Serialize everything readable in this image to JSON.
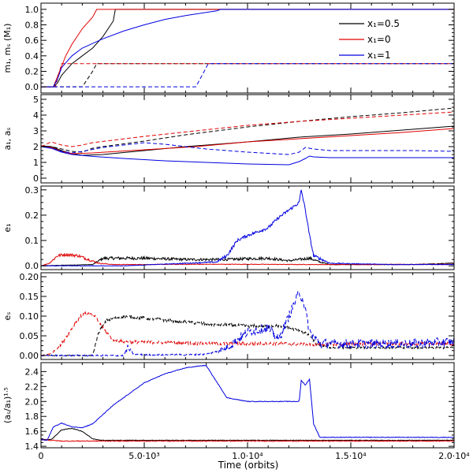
{
  "chart_data": {
    "type": "line",
    "xlabel": "Time (orbits)",
    "xlim": [
      0,
      20000
    ],
    "x_ticks": [
      0,
      5000,
      10000,
      15000,
      20000
    ],
    "x_tick_labels": [
      "0",
      "5.0·10³",
      "1.0·10⁴",
      "1.5·10⁴",
      "2.0·10⁴"
    ],
    "legend": {
      "placement": "top-right",
      "entries": [
        {
          "label": "x₁=0.5",
          "color": "#000000"
        },
        {
          "label": "x₁=0",
          "color": "#e00000"
        },
        {
          "label": "x₁=1",
          "color": "#0000e0"
        }
      ]
    },
    "colors": {
      "black": "#000000",
      "red": "#e00000",
      "blue": "#0000e0"
    },
    "panels": [
      {
        "id": "masses",
        "ylabel": "m₁, mₛ (M₁)",
        "ylim": [
          -0.08,
          1.08
        ],
        "y_ticks": [
          0.0,
          0.2,
          0.4,
          0.6,
          0.8,
          1.0
        ],
        "y_tick_labels": [
          "0.0",
          "0.2",
          "0.4",
          "0.6",
          "0.8",
          "1.0"
        ],
        "series": [
          {
            "name": "m_J x=0.5",
            "color": "black",
            "dash": false,
            "x": [
              0,
              600,
              800,
              1000,
              1500,
              2000,
              2500,
              3000,
              3500,
              3600,
              20000
            ],
            "y": [
              0.0,
              0.0,
              0.05,
              0.15,
              0.3,
              0.4,
              0.5,
              0.65,
              0.85,
              1.0,
              1.0
            ]
          },
          {
            "name": "m_S x=0.5",
            "color": "black",
            "dash": true,
            "x": [
              0,
              2000,
              2500,
              2700,
              20000
            ],
            "y": [
              0.0,
              0.0,
              0.2,
              0.3,
              0.3
            ]
          },
          {
            "name": "m_J x=0",
            "color": "red",
            "dash": false,
            "x": [
              0,
              600,
              900,
              1200,
              1500,
              2000,
              2500,
              2700,
              20000
            ],
            "y": [
              0.0,
              0.0,
              0.2,
              0.4,
              0.55,
              0.75,
              0.9,
              1.0,
              1.0
            ]
          },
          {
            "name": "m_S x=0",
            "color": "red",
            "dash": true,
            "x": [
              0,
              700,
              900,
              1000,
              20000
            ],
            "y": [
              0.0,
              0.0,
              0.2,
              0.3,
              0.3
            ]
          },
          {
            "name": "m_J x=1",
            "color": "blue",
            "dash": false,
            "x": [
              0,
              600,
              800,
              1000,
              1500,
              2000,
              3000,
              4000,
              5000,
              6000,
              7000,
              8000,
              8500,
              8700,
              20000
            ],
            "y": [
              0.0,
              0.0,
              0.1,
              0.25,
              0.4,
              0.5,
              0.62,
              0.72,
              0.8,
              0.87,
              0.92,
              0.96,
              0.98,
              1.0,
              1.0
            ]
          },
          {
            "name": "m_S x=1",
            "color": "blue",
            "dash": true,
            "x": [
              0,
              7500,
              7900,
              8100,
              20000
            ],
            "y": [
              0.0,
              0.0,
              0.2,
              0.3,
              0.3
            ]
          }
        ]
      },
      {
        "id": "semimajor",
        "ylabel": "a₁, aₛ",
        "ylim": [
          -0.3,
          5.3
        ],
        "y_ticks": [
          0,
          1,
          2,
          3,
          4,
          5
        ],
        "y_tick_labels": [
          "0",
          "1",
          "2",
          "3",
          "4",
          "5"
        ],
        "series": [
          {
            "name": "a_J x=0.5",
            "color": "black",
            "dash": false,
            "x": [
              0,
              500,
              1000,
              1500,
              2000,
              3000,
              5000,
              7000,
              10000,
              12500,
              15000,
              17500,
              20000
            ],
            "y": [
              2.05,
              2.0,
              1.75,
              1.55,
              1.45,
              1.5,
              1.75,
              2.0,
              2.3,
              2.6,
              2.8,
              3.05,
              3.3
            ]
          },
          {
            "name": "a_S x=0.5",
            "color": "black",
            "dash": true,
            "x": [
              0,
              500,
              1000,
              1500,
              2000,
              2500,
              3000,
              5000,
              7000,
              10000,
              12500,
              15000,
              17500,
              20000
            ],
            "y": [
              2.05,
              2.0,
              1.85,
              1.7,
              1.65,
              1.9,
              2.0,
              2.35,
              2.75,
              3.25,
              3.6,
              3.9,
              4.15,
              4.45
            ]
          },
          {
            "name": "a_J x=0",
            "color": "red",
            "dash": false,
            "x": [
              0,
              500,
              1000,
              1500,
              2500,
              5000,
              7500,
              10000,
              12500,
              15000,
              17500,
              20000
            ],
            "y": [
              2.0,
              1.95,
              1.7,
              1.55,
              1.6,
              1.8,
              2.0,
              2.3,
              2.5,
              2.7,
              2.9,
              3.15
            ]
          },
          {
            "name": "a_S x=0",
            "color": "red",
            "dash": true,
            "x": [
              0,
              500,
              1000,
              1500,
              2000,
              2500,
              5000,
              7500,
              10000,
              12500,
              15000,
              17500,
              20000
            ],
            "y": [
              2.0,
              2.3,
              2.1,
              2.0,
              2.1,
              2.25,
              2.65,
              3.0,
              3.35,
              3.6,
              3.8,
              4.0,
              4.2
            ]
          },
          {
            "name": "a_J x=1",
            "color": "blue",
            "dash": false,
            "x": [
              0,
              500,
              1000,
              1500,
              2500,
              4000,
              6000,
              8000,
              10000,
              12000,
              12500,
              12800,
              13000,
              13200,
              14000,
              16000,
              18000,
              20000
            ],
            "y": [
              2.0,
              1.9,
              1.65,
              1.5,
              1.38,
              1.25,
              1.1,
              1.0,
              0.9,
              0.85,
              1.05,
              1.25,
              1.4,
              1.35,
              1.3,
              1.3,
              1.3,
              1.3
            ]
          },
          {
            "name": "a_S x=1",
            "color": "blue",
            "dash": true,
            "x": [
              0,
              500,
              1000,
              1500,
              2000,
              3000,
              4000,
              5000,
              6000,
              8000,
              10000,
              12000,
              12500,
              12800,
              13200,
              14000,
              16000,
              18000,
              20000
            ],
            "y": [
              2.0,
              1.9,
              1.7,
              1.6,
              1.7,
              1.95,
              2.1,
              2.25,
              2.15,
              1.85,
              1.65,
              1.5,
              1.65,
              1.95,
              1.85,
              1.75,
              1.75,
              1.75,
              1.7
            ]
          }
        ]
      },
      {
        "id": "ecc_j",
        "ylabel": "e₁",
        "ylim": [
          -0.015,
          0.315
        ],
        "y_ticks": [
          0.0,
          0.1,
          0.2,
          0.3
        ],
        "y_tick_labels": [
          "0.0",
          "0.1",
          "0.2",
          "0.3"
        ],
        "series": [
          {
            "name": "e_J x=0.5",
            "color": "black",
            "dash": false,
            "x": [
              0,
              2500,
              3000,
              4000,
              5000,
              7000,
              9000,
              10000,
              11000,
              12000,
              13000,
              13500,
              14000,
              16000,
              18000,
              20000
            ],
            "y": [
              0.0,
              0.005,
              0.03,
              0.03,
              0.03,
              0.025,
              0.025,
              0.028,
              0.03,
              0.02,
              0.03,
              0.015,
              0.005,
              0.005,
              0.005,
              0.01
            ],
            "noise": 0.006
          },
          {
            "name": "e_J x=0",
            "color": "red",
            "dash": false,
            "x": [
              0,
              400,
              800,
              1200,
              1800,
              2300,
              2800,
              3500,
              5000,
              7000,
              10000,
              13000,
              16000,
              20000
            ],
            "y": [
              0.0,
              0.01,
              0.04,
              0.045,
              0.04,
              0.025,
              0.01,
              0.005,
              0.005,
              0.006,
              0.006,
              0.005,
              0.005,
              0.006
            ],
            "noise": 0.006
          },
          {
            "name": "e_J x=1",
            "color": "blue",
            "dash": false,
            "x": [
              0,
              4000,
              7000,
              8500,
              9000,
              9500,
              10000,
              11000,
              11500,
              12000,
              12500,
              12600,
              12800,
              13000,
              13200,
              14000,
              17000,
              20000
            ],
            "y": [
              0.0,
              0.0,
              0.01,
              0.015,
              0.04,
              0.1,
              0.12,
              0.15,
              0.19,
              0.22,
              0.25,
              0.3,
              0.22,
              0.12,
              0.04,
              0.01,
              0.005,
              0.005
            ],
            "noise": 0.006
          }
        ]
      },
      {
        "id": "ecc_s",
        "ylabel": "eₛ",
        "ylim": [
          -0.01,
          0.21
        ],
        "y_ticks": [
          0.0,
          0.05,
          0.1,
          0.15,
          0.2
        ],
        "y_tick_labels": [
          "0.00",
          "0.05",
          "0.10",
          "0.15",
          "0.20"
        ],
        "series": [
          {
            "name": "e_S x=0.5",
            "color": "black",
            "dash": true,
            "x": [
              0,
              2500,
              2800,
              3200,
              4000,
              6000,
              8000,
              10000,
              11500,
              12500,
              13000,
              13300,
              14000,
              20000
            ],
            "y": [
              0.0,
              0.0,
              0.06,
              0.09,
              0.1,
              0.09,
              0.08,
              0.075,
              0.075,
              0.065,
              0.05,
              0.03,
              0.02,
              0.02
            ],
            "noise": 0.004
          },
          {
            "name": "e_S x=0",
            "color": "red",
            "dash": true,
            "x": [
              0,
              500,
              1000,
              1500,
              1900,
              2200,
              2600,
              3000,
              3500,
              4000,
              6000,
              8000,
              10000,
              12000,
              13000,
              16000,
              20000
            ],
            "y": [
              0.0,
              0.005,
              0.03,
              0.07,
              0.1,
              0.108,
              0.1,
              0.07,
              0.04,
              0.035,
              0.033,
              0.03,
              0.03,
              0.03,
              0.028,
              0.03,
              0.03
            ],
            "noise": 0.004
          },
          {
            "name": "e_S x=1",
            "color": "blue",
            "dash": true,
            "x": [
              0,
              4000,
              4200,
              4500,
              5000,
              7000,
              8000,
              9000,
              10000,
              11000,
              11500,
              12000,
              12500,
              12700,
              13000,
              13500,
              14000,
              16000,
              18000,
              20000
            ],
            "y": [
              0.0,
              0.0,
              0.02,
              0.003,
              0.002,
              0.002,
              0.003,
              0.02,
              0.06,
              0.07,
              0.04,
              0.1,
              0.16,
              0.14,
              0.06,
              0.03,
              0.03,
              0.03,
              0.03,
              0.035
            ],
            "noise": 0.012
          }
        ]
      },
      {
        "id": "ratio",
        "ylabel": "(aₛ/a₁)¹ᐧ⁵",
        "ylim": [
          1.38,
          2.52
        ],
        "y_ticks": [
          1.4,
          1.6,
          1.8,
          2.0,
          2.2,
          2.4
        ],
        "y_tick_labels": [
          "1.4",
          "1.6",
          "1.8",
          "2.0",
          "2.2",
          "2.4"
        ],
        "series": [
          {
            "name": "ratio x=0.5",
            "color": "black",
            "dash": false,
            "x": [
              0,
              500,
              1000,
              1500,
              2000,
              2500,
              3000,
              20000
            ],
            "y": [
              1.49,
              1.49,
              1.62,
              1.64,
              1.6,
              1.5,
              1.48,
              1.48
            ],
            "noise": 0.004
          },
          {
            "name": "ratio x=0",
            "color": "red",
            "dash": false,
            "x": [
              0,
              500,
              1000,
              1500,
              20000
            ],
            "y": [
              1.49,
              1.48,
              1.47,
              1.47,
              1.47
            ],
            "noise": 0.006
          },
          {
            "name": "ratio x=1",
            "color": "blue",
            "dash": false,
            "x": [
              0,
              300,
              600,
              1000,
              1500,
              2000,
              2500,
              3500,
              5000,
              6000,
              7000,
              7800,
              8000,
              9000,
              10000,
              11000,
              12000,
              12500,
              12600,
              12800,
              13000,
              13200,
              13500,
              14000,
              16000,
              20000
            ],
            "y": [
              1.49,
              1.48,
              1.66,
              1.71,
              1.66,
              1.65,
              1.7,
              1.95,
              2.25,
              2.37,
              2.45,
              2.48,
              2.48,
              2.05,
              2.0,
              2.0,
              2.0,
              2.0,
              2.28,
              2.22,
              2.3,
              1.7,
              1.52,
              1.52,
              1.52,
              1.52
            ],
            "noise": 0.004
          }
        ]
      }
    ]
  }
}
